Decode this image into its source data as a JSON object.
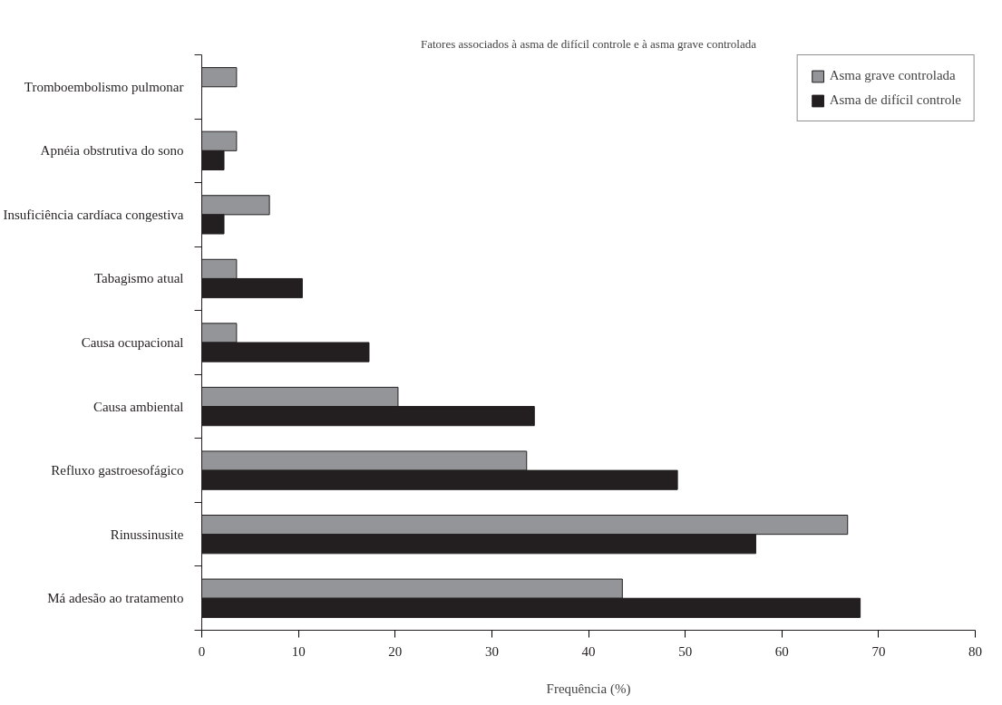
{
  "chart_data": {
    "type": "bar",
    "orientation": "horizontal",
    "title": "Fatores associados à asma de difícil controle e à asma grave controlada",
    "xlabel": "Frequência (%)",
    "categories": [
      "Tromboembolismo pulmonar",
      "Apnéia obstrutiva do sono",
      "Insuficiência cardíaca congestiva",
      "Tabagismo atual",
      "Causa ocupacional",
      "Causa ambiental",
      "Refluxo gastroesofágico",
      "Rinussinusite",
      "Má adesão ao tratamento"
    ],
    "series": [
      {
        "name": "Asma grave controlada",
        "color": "#939598",
        "values": [
          3.6,
          3.6,
          7.0,
          3.6,
          3.6,
          20.3,
          33.6,
          66.8,
          43.5
        ]
      },
      {
        "name": "Asma de difícil controle",
        "color": "#231f20",
        "values": [
          null,
          2.3,
          2.3,
          10.4,
          17.3,
          34.4,
          49.2,
          57.3,
          68.1
        ]
      }
    ],
    "xlim": [
      0,
      80
    ],
    "xticks": [
      0,
      10,
      20,
      30,
      40,
      50,
      60,
      70,
      80
    ],
    "grid": false,
    "legend": "top right"
  }
}
